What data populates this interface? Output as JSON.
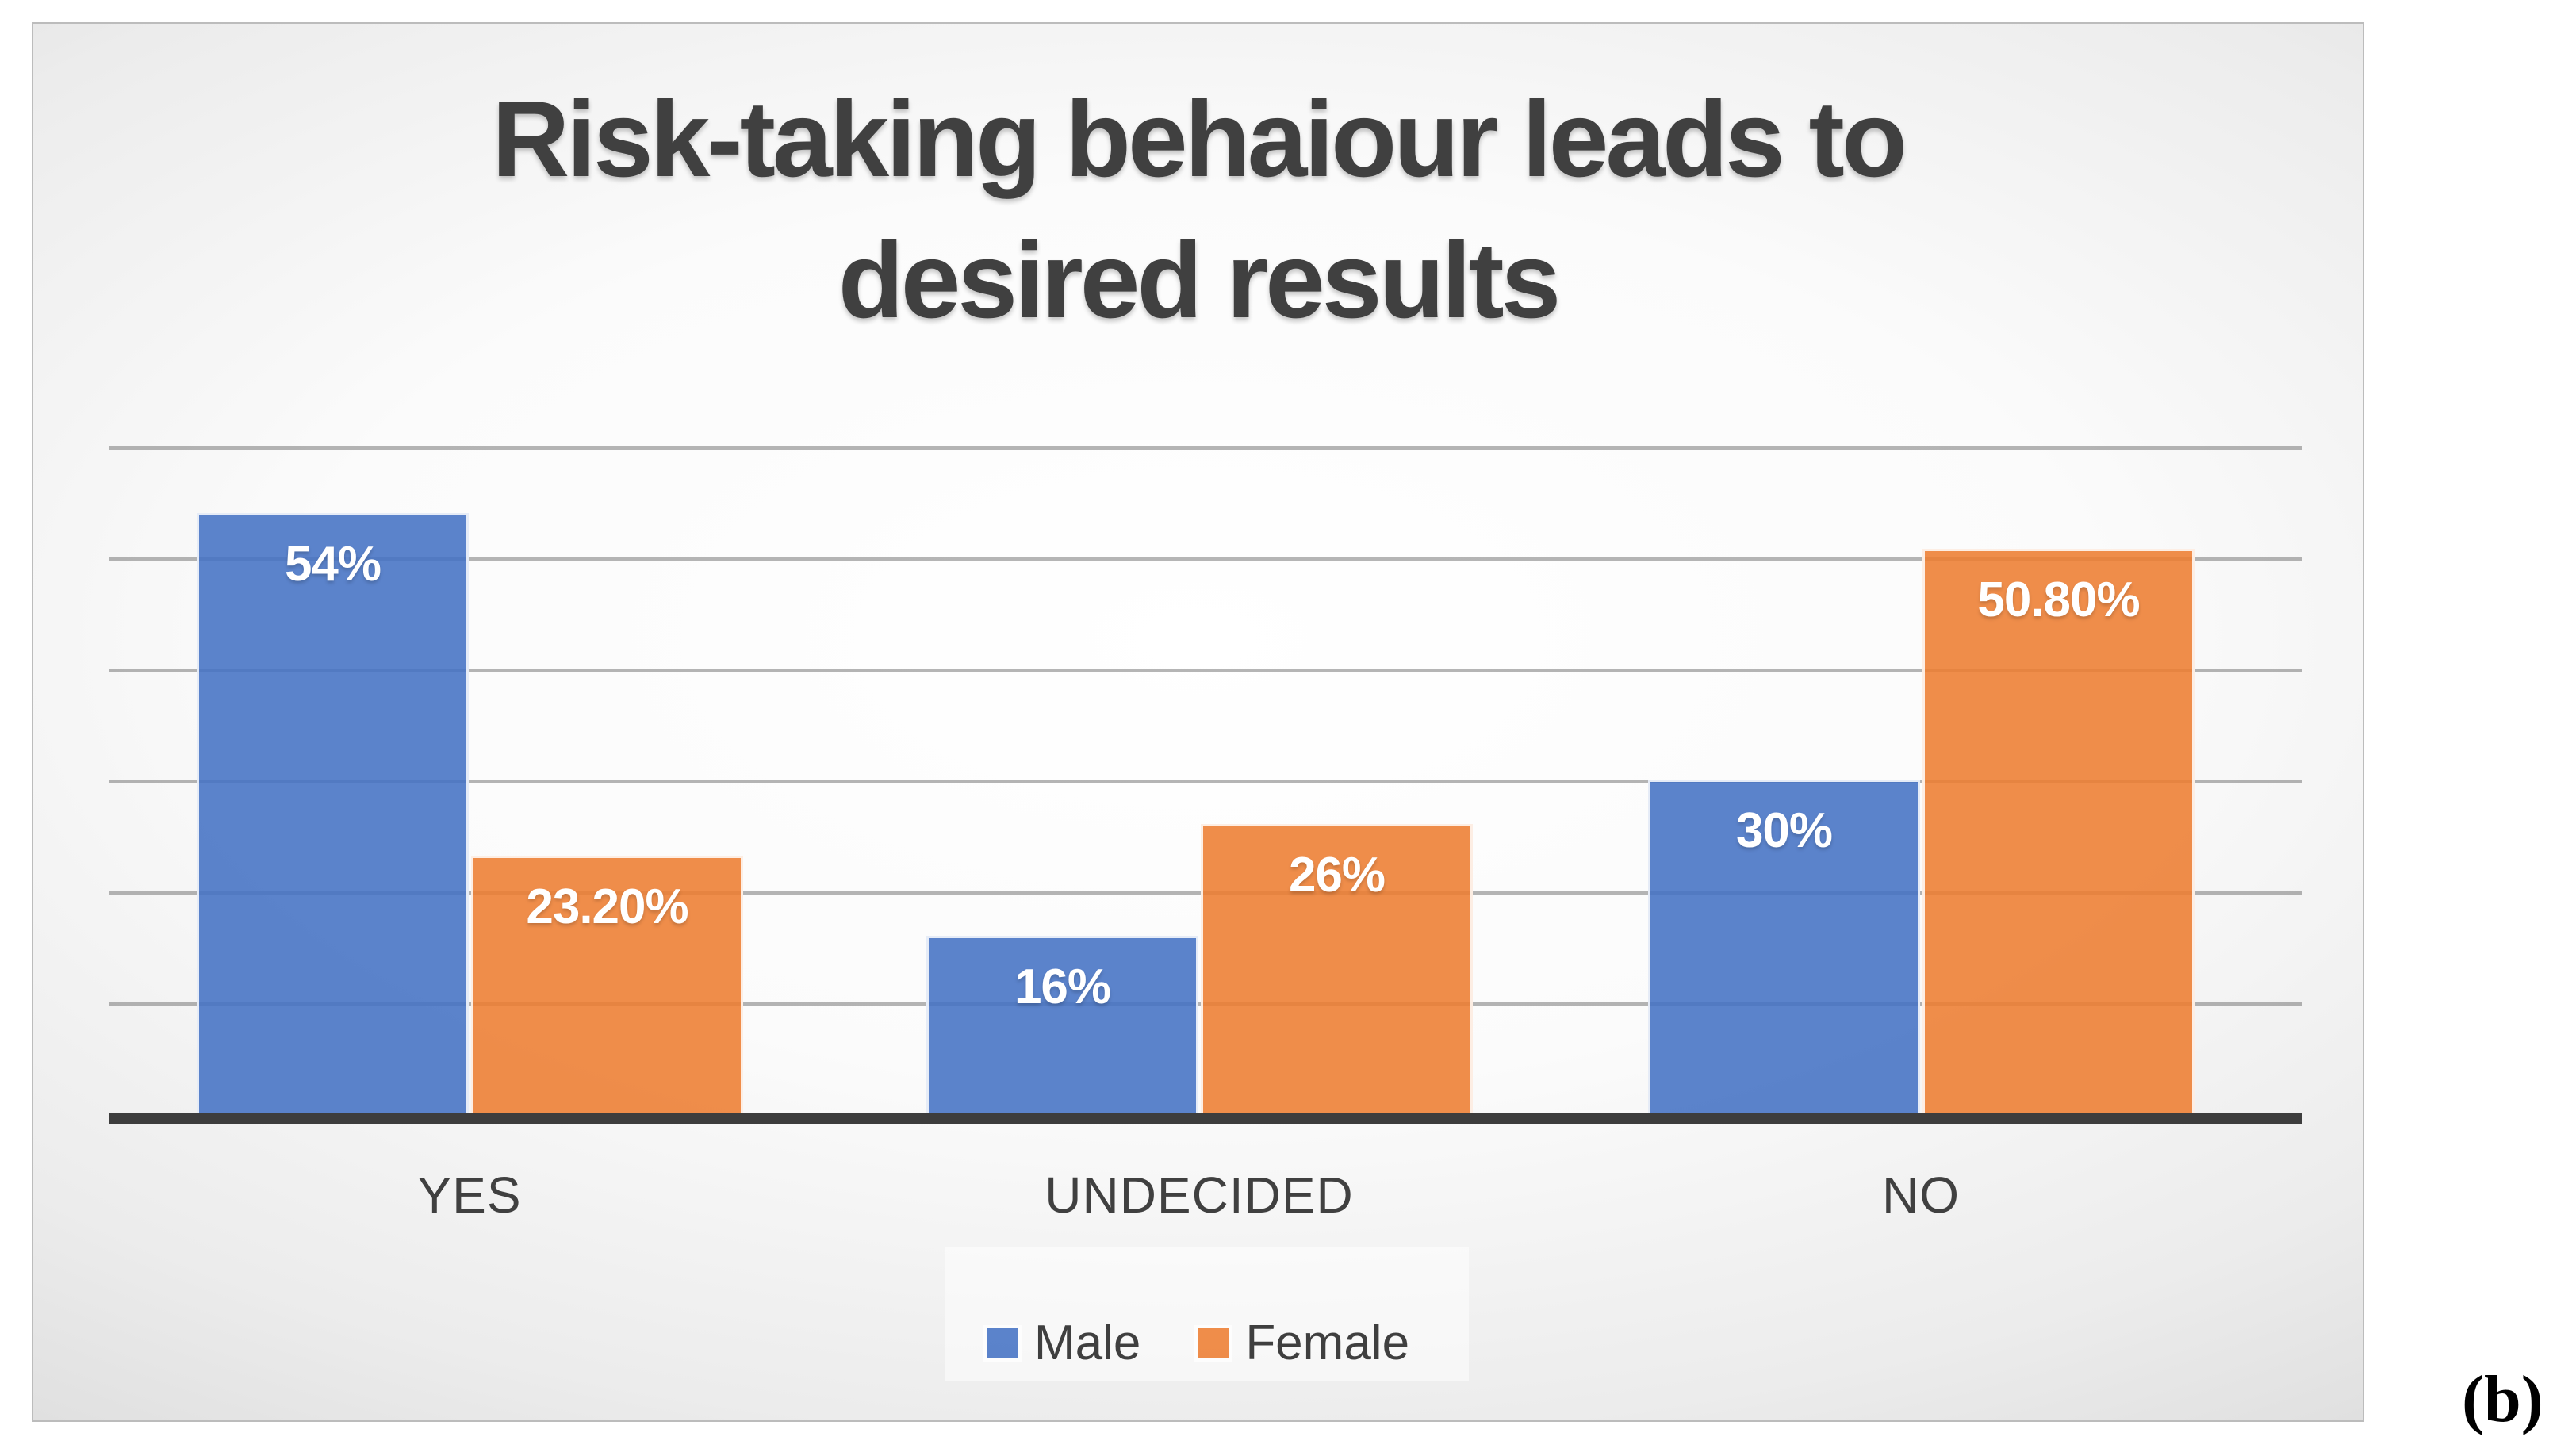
{
  "figure_label": "(b)",
  "title": {
    "line1": "Risk-taking behaiour leads to",
    "line2": "desired results"
  },
  "legend": {
    "items": [
      {
        "label": "Male",
        "color": "#4472C4"
      },
      {
        "label": "Female",
        "color": "#ED7D31"
      }
    ]
  },
  "chart_data": {
    "type": "bar",
    "title": "Risk-taking behaiour leads to desired results",
    "categories": [
      "YES",
      "UNDECIDED",
      "NO"
    ],
    "series": [
      {
        "name": "Male",
        "color": "#4472C4",
        "values": [
          54,
          16,
          30
        ],
        "labels": [
          "54%",
          "16%",
          "30%"
        ]
      },
      {
        "name": "Female",
        "color": "#ED7D31",
        "values": [
          23.2,
          26,
          50.8
        ],
        "labels": [
          "23.20%",
          "26%",
          "50.80%"
        ]
      }
    ],
    "ylabel": "",
    "xlabel": "",
    "ylim": [
      0,
      60
    ],
    "gridline_step_pct": 10,
    "grid": true,
    "value_axis_labels_visible": false,
    "legend_position": "bottom",
    "data_label_color": "#ffffff",
    "text_color": "#404040",
    "axis_color": "#3d3d3d"
  }
}
